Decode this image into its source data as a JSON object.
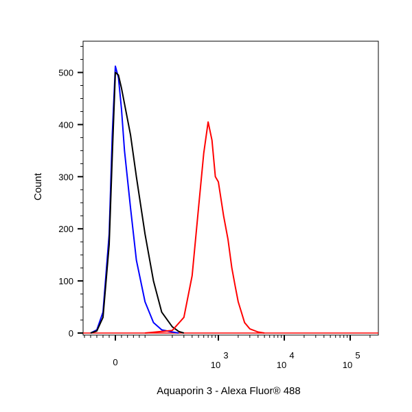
{
  "chart_data": {
    "type": "line",
    "title": "",
    "xlabel": "Aquaporin 3 - Alexa Fluor® 488",
    "ylabel": "Count",
    "xscale": "biexponential",
    "ylim": [
      0,
      560
    ],
    "grid": false,
    "y_ticks": [
      {
        "value": 0,
        "label": "0"
      },
      {
        "value": 100,
        "label": "100"
      },
      {
        "value": 200,
        "label": "200"
      },
      {
        "value": 300,
        "label": "300"
      },
      {
        "value": 400,
        "label": "400"
      },
      {
        "value": 500,
        "label": "500"
      }
    ],
    "x_ticks": [
      {
        "value": 0,
        "label": "0"
      },
      {
        "value": 1000,
        "base": "10",
        "exp": "3"
      },
      {
        "value": 10000,
        "base": "10",
        "exp": "4"
      },
      {
        "value": 100000,
        "base": "10",
        "exp": "5"
      }
    ],
    "series": [
      {
        "color": "#0000ff",
        "x": [
          -80,
          -60,
          -40,
          -20,
          -10,
          0,
          10,
          20,
          30,
          50,
          70,
          100,
          130,
          160,
          200,
          250
        ],
        "y": [
          0,
          6,
          40,
          190,
          380,
          512,
          490,
          430,
          350,
          240,
          140,
          60,
          20,
          6,
          2,
          0
        ]
      },
      {
        "color": "#000000",
        "x": [
          -80,
          -60,
          -40,
          -20,
          -10,
          0,
          10,
          20,
          30,
          50,
          70,
          100,
          130,
          160,
          200,
          250,
          300
        ],
        "y": [
          0,
          4,
          30,
          170,
          340,
          500,
          495,
          470,
          440,
          380,
          300,
          190,
          100,
          40,
          12,
          3,
          0
        ]
      },
      {
        "color": "#ff0000",
        "x": [
          100,
          200,
          300,
          400,
          500,
          600,
          700,
          800,
          900,
          1000,
          1200,
          1400,
          1600,
          1800,
          2000,
          2500,
          3000,
          4000,
          5000
        ],
        "y": [
          0,
          5,
          30,
          110,
          240,
          345,
          405,
          370,
          300,
          290,
          225,
          180,
          125,
          90,
          60,
          20,
          8,
          2,
          0
        ]
      }
    ]
  }
}
